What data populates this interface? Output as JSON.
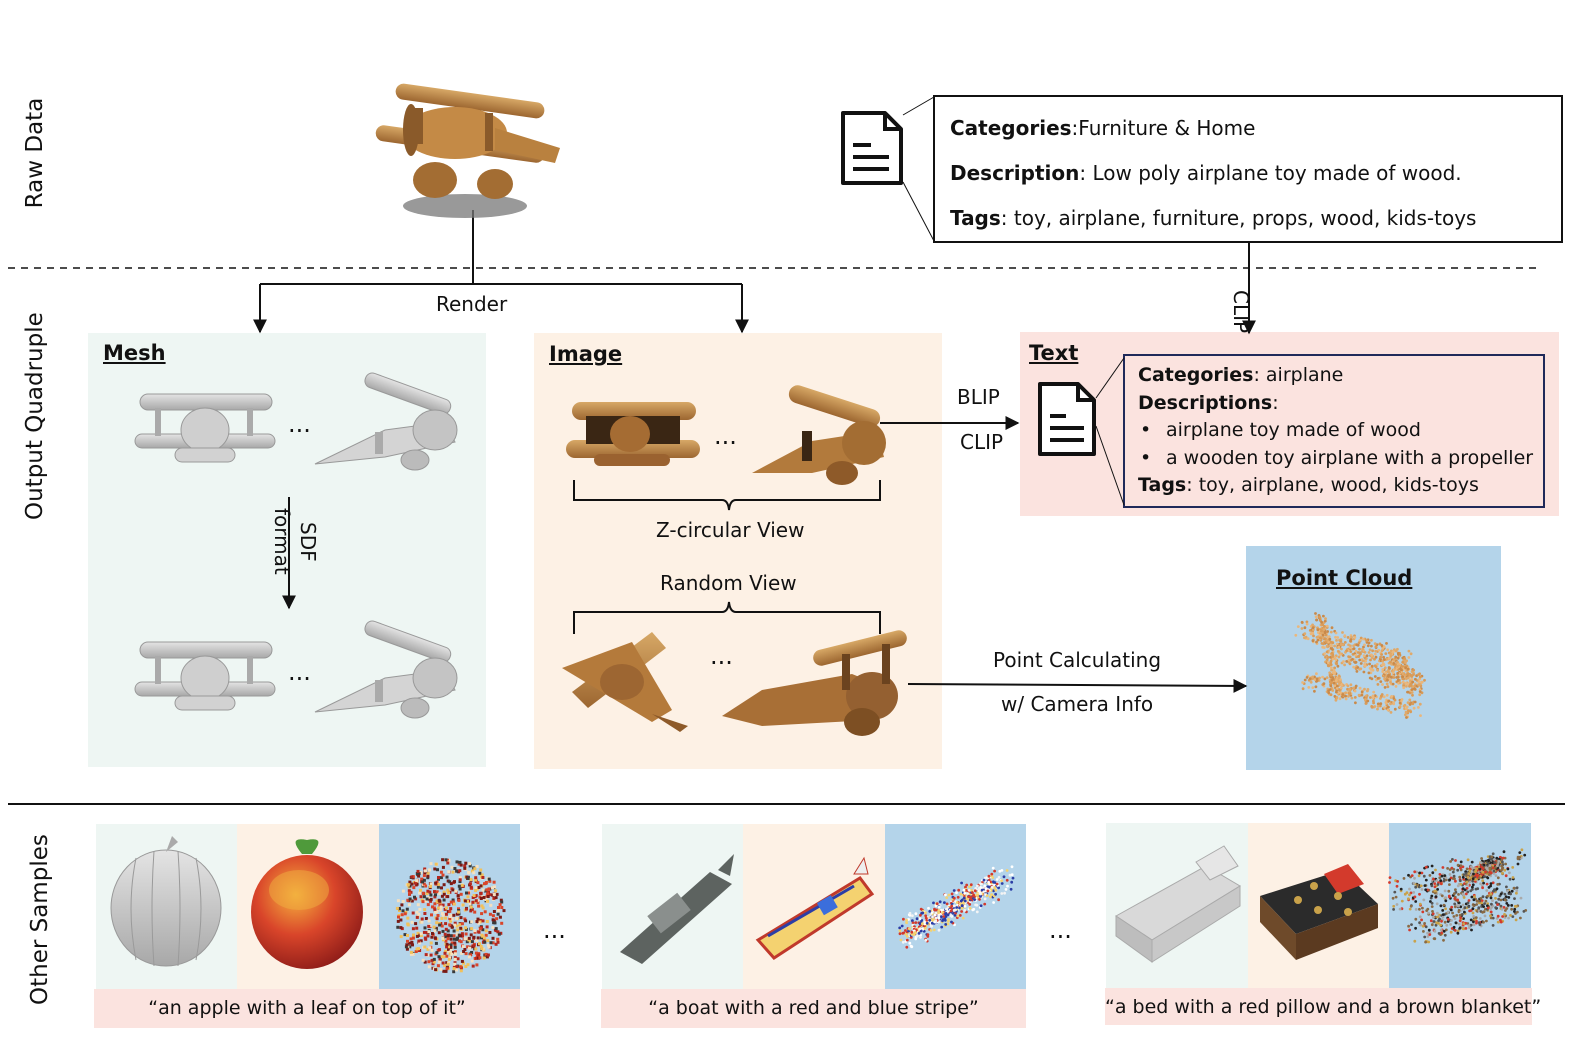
{
  "rows": {
    "raw": "Raw Data",
    "output": "Output Quadruple",
    "other": "Other Samples"
  },
  "metadata": {
    "categories_key": "Categories",
    "categories_value": ":Furniture & Home",
    "description_key": "Description",
    "description_value": ": Low poly airplane toy made of wood.",
    "tags_key": "Tags",
    "tags_value": ": toy, airplane, furniture, props, wood, kids-toys"
  },
  "arrows": {
    "render": "Render",
    "clip_vertical": "CLIP",
    "blip": "BLIP",
    "clip": "CLIP",
    "sdf": "SDF",
    "format": "format",
    "point_calc": "Point Calculating",
    "camera_info": "w/ Camera  Info"
  },
  "panels": {
    "mesh": "Mesh",
    "image": "Image",
    "text": "Text",
    "point_cloud": "Point Cloud"
  },
  "image_panel": {
    "zcircular": "Z-circular View",
    "random": "Random View"
  },
  "ellipsis": "...",
  "text_panel": {
    "categories_key": "Categories",
    "categories_value": ": airplane",
    "descriptions_key": "Descriptions",
    "descriptions_value": ":",
    "bullet": "•",
    "desc1": "airplane toy made of wood",
    "desc2": "a wooden toy airplane with a propeller",
    "tags_key": "Tags",
    "tags_value": ": toy, airplane, wood, kids-toys"
  },
  "samples": [
    {
      "caption": "“an apple with a leaf on top of it”"
    },
    {
      "caption": "“a boat with a red and blue stripe”"
    },
    {
      "caption": "“a bed with a red pillow and a brown blanket”"
    }
  ],
  "colors": {
    "mesh_bg": "#eef6f3",
    "image_bg": "#fdf1e5",
    "text_bg": "#fbe3df",
    "cloud_bg": "#b4d4ea",
    "text_border": "#1f2a5a",
    "wood": "#b37a3e",
    "mesh_gray": "#bdbdbd"
  }
}
